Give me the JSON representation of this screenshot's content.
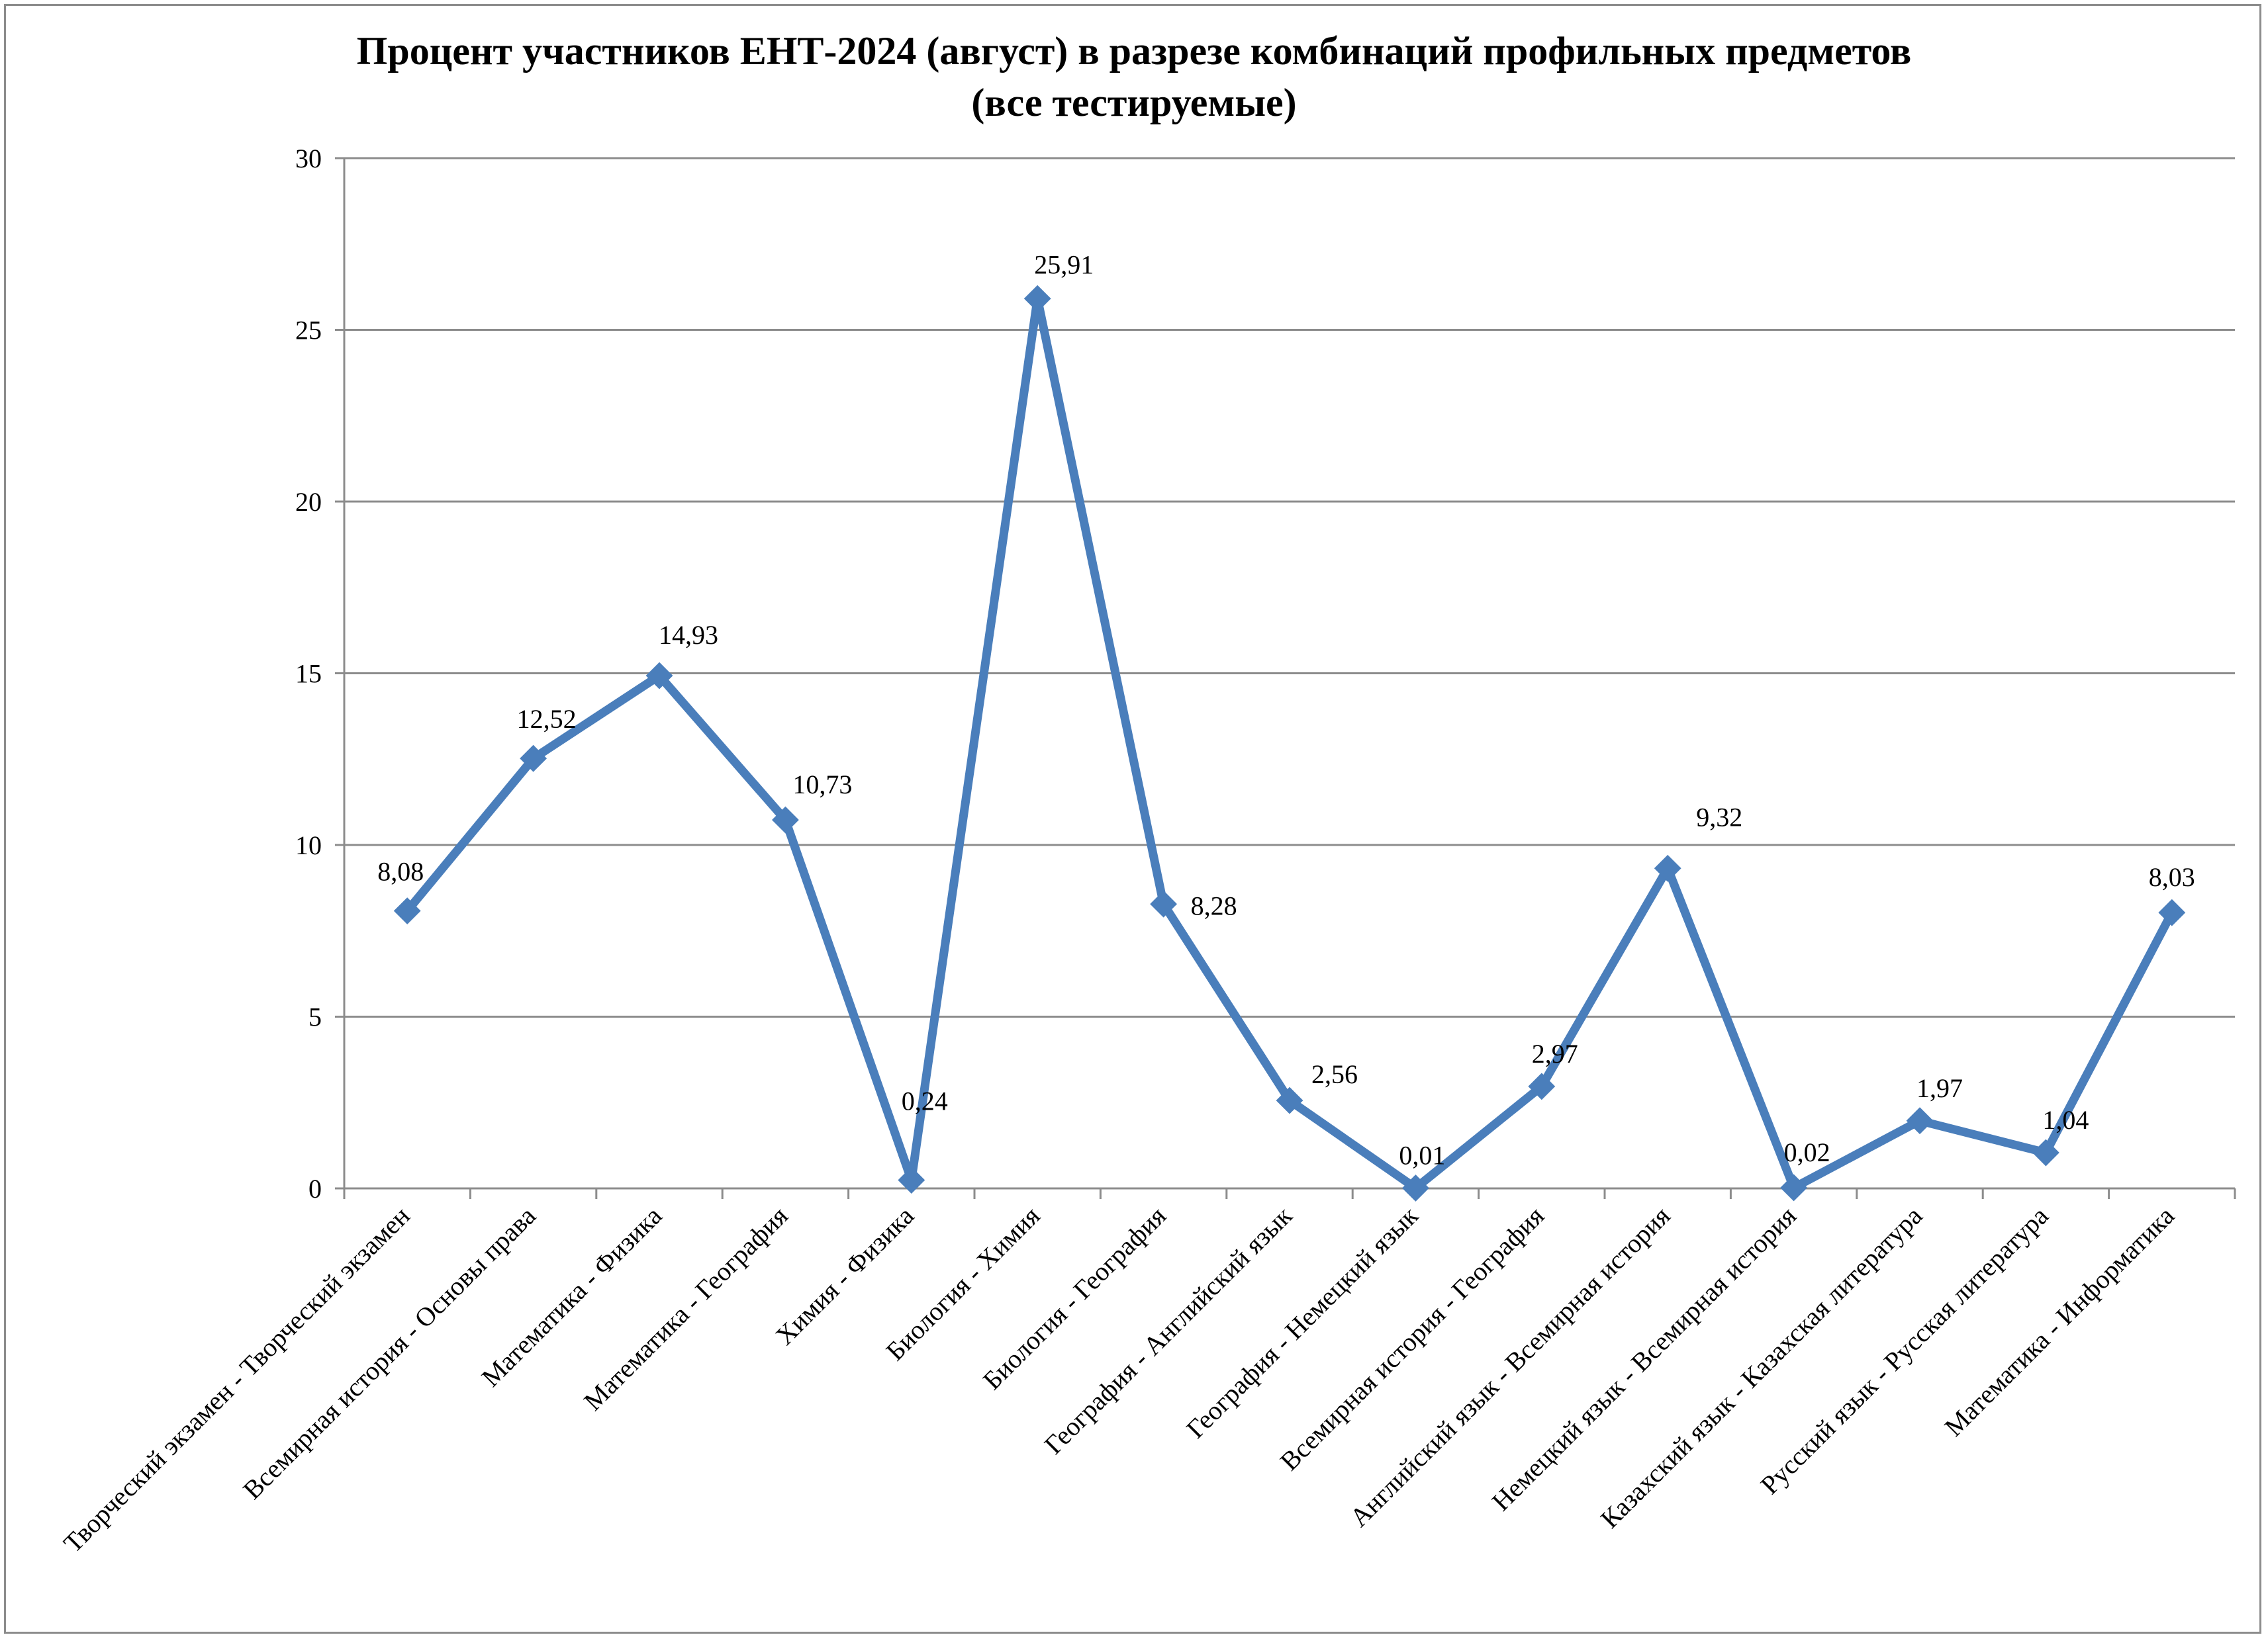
{
  "chart_data": {
    "type": "line",
    "title": [
      "Процент участников ЕНТ-2024 (август) в разрезе комбинаций профильных предметов",
      "(все тестируемые)"
    ],
    "xlabel": "",
    "ylabel": "",
    "ylim": [
      0,
      30
    ],
    "yticks": [
      "0",
      "5",
      "10",
      "15",
      "20",
      "25",
      "30"
    ],
    "grid": true,
    "legend": "none",
    "line_color": "#4a7ebb",
    "categories": [
      "Творческий экзамен - Творческий экзамен",
      "Всемирная история - Основы права",
      "Математика - Физика",
      "Математика - География",
      "Химия - Физика",
      "Биология - Химия",
      "Биология - География",
      "География - Английский язык",
      "География - Немецкий язык",
      "Всемирная история - География",
      "Английский язык - Всемирная история",
      "Немецкий язык - Всемирная история",
      "Казахский язык - Казахская литература",
      "Русский язык - Русская литература",
      "Математика - Информатика"
    ],
    "values": [
      8.08,
      12.52,
      14.93,
      10.73,
      0.24,
      25.91,
      8.28,
      2.56,
      0.01,
      2.97,
      9.32,
      0.02,
      1.97,
      1.04,
      8.03
    ],
    "data_labels": [
      "8,08",
      "12,52",
      "14,93",
      "10,73",
      "0,24",
      "25,91",
      "8,28",
      "2,56",
      "0,01",
      "2,97",
      "9,32",
      "0,02",
      "1,97",
      "1,04",
      "8,03"
    ]
  }
}
